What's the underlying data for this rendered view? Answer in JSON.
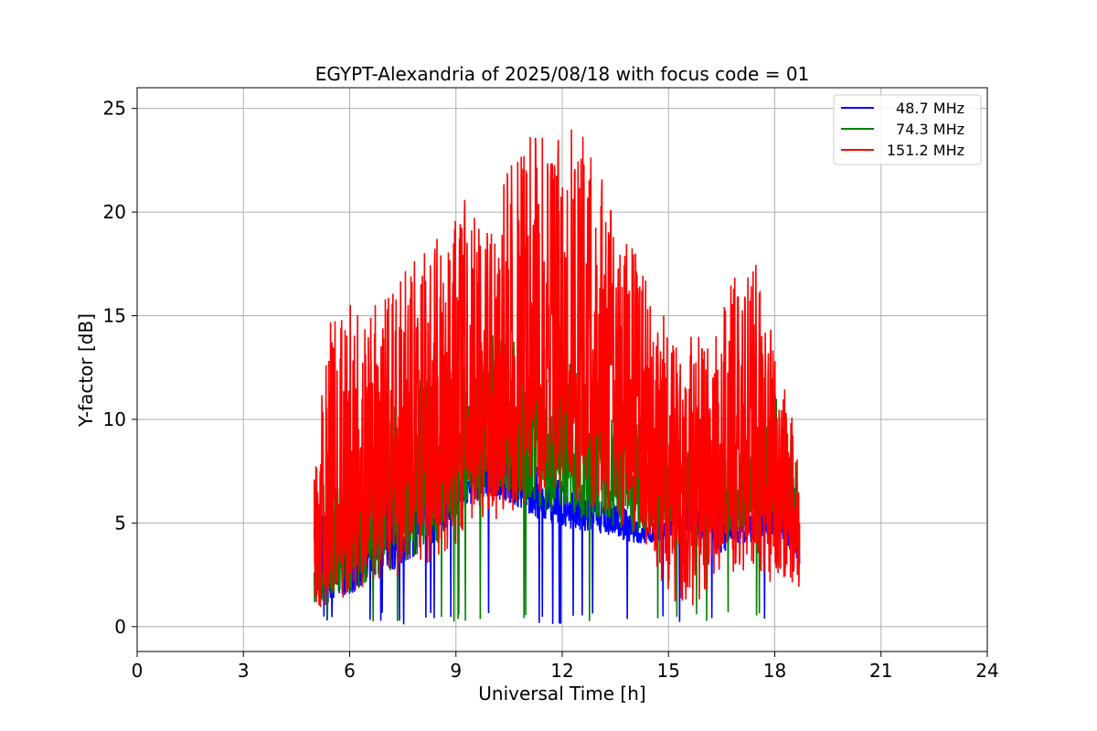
{
  "chart_data": {
    "type": "line",
    "title": "EGYPT-Alexandria of 2025/08/18 with focus code = 01",
    "xlabel": "Universal Time [h]",
    "ylabel": "Y-factor [dB]",
    "xlim": [
      0,
      24
    ],
    "ylim": [
      -1.2,
      26
    ],
    "xticks": [
      0,
      3,
      6,
      9,
      12,
      15,
      18,
      21,
      24
    ],
    "yticks": [
      0,
      5,
      10,
      15,
      20,
      25
    ],
    "grid": true,
    "legend_position": "top-right",
    "series": [
      {
        "name": "48.7 MHz",
        "color": "#0000ff",
        "x": [
          5.0,
          5.5,
          6.0,
          6.5,
          7.0,
          7.5,
          8.0,
          8.5,
          9.0,
          9.5,
          10.0,
          10.5,
          11.0,
          11.5,
          12.0,
          12.5,
          13.0,
          13.5,
          14.0,
          14.5,
          15.0,
          15.5,
          16.0,
          16.5,
          17.0,
          17.5,
          18.0,
          18.5,
          18.7
        ],
        "low": [
          1.0,
          1.2,
          1.5,
          2.0,
          2.5,
          3.0,
          3.5,
          4.0,
          5.5,
          6.0,
          6.2,
          6.0,
          5.5,
          5.0,
          4.8,
          4.6,
          4.5,
          4.2,
          4.0,
          4.0,
          4.2,
          4.5,
          4.0,
          3.5,
          3.8,
          4.2,
          4.5,
          3.5,
          3.0
        ],
        "high": [
          6.5,
          6.0,
          6.5,
          7.0,
          7.5,
          8.0,
          8.5,
          8.8,
          9.0,
          9.5,
          9.0,
          8.5,
          8.0,
          7.5,
          7.0,
          6.5,
          6.2,
          6.0,
          5.5,
          5.0,
          5.5,
          6.5,
          6.8,
          6.5,
          6.2,
          6.0,
          6.0,
          5.5,
          5.0
        ]
      },
      {
        "name": "74.3 MHz",
        "color": "#008000",
        "x": [
          5.0,
          5.5,
          6.0,
          6.5,
          7.0,
          7.5,
          8.0,
          8.5,
          9.0,
          9.5,
          10.0,
          10.5,
          11.0,
          11.5,
          12.0,
          12.5,
          13.0,
          13.5,
          14.0,
          14.5,
          15.0,
          15.5,
          16.0,
          16.5,
          17.0,
          17.5,
          18.0,
          18.5,
          18.7
        ],
        "low": [
          1.0,
          1.5,
          1.5,
          2.0,
          2.5,
          3.0,
          3.5,
          4.0,
          5.0,
          6.0,
          6.5,
          6.5,
          6.0,
          5.5,
          5.5,
          5.0,
          5.0,
          4.8,
          4.5,
          4.5,
          4.8,
          5.5,
          5.0,
          4.5,
          4.5,
          5.0,
          5.5,
          4.5,
          3.5
        ],
        "high": [
          7.8,
          7.5,
          8.0,
          9.0,
          10.0,
          11.5,
          12.5,
          12.2,
          12.5,
          13.0,
          14.5,
          14.0,
          13.5,
          13.5,
          13.0,
          12.5,
          12.0,
          11.5,
          10.5,
          9.5,
          8.5,
          8.8,
          8.5,
          8.5,
          9.0,
          10.0,
          11.2,
          9.0,
          7.0
        ]
      },
      {
        "name": "151.2 MHz",
        "color": "#ff0000",
        "x": [
          5.0,
          5.5,
          6.0,
          6.5,
          7.0,
          7.5,
          8.0,
          8.5,
          9.0,
          9.5,
          10.0,
          10.5,
          11.0,
          11.5,
          12.0,
          12.5,
          13.0,
          13.5,
          14.0,
          14.5,
          15.0,
          15.5,
          16.0,
          16.5,
          17.0,
          17.5,
          18.0,
          18.5,
          18.7
        ],
        "low": [
          0.8,
          1.0,
          1.5,
          1.8,
          2.2,
          2.5,
          2.8,
          3.2,
          4.0,
          4.5,
          5.0,
          5.5,
          6.0,
          6.5,
          6.5,
          6.0,
          5.5,
          5.0,
          4.5,
          3.5,
          1.5,
          0.5,
          1.5,
          2.0,
          2.5,
          2.5,
          2.0,
          1.5,
          1.0
        ],
        "high": [
          8.0,
          15.5,
          16.5,
          14.5,
          17.0,
          17.5,
          18.0,
          19.0,
          21.0,
          21.5,
          20.0,
          22.5,
          24.5,
          23.5,
          24.5,
          24.0,
          22.5,
          20.0,
          18.5,
          17.5,
          14.5,
          14.5,
          14.0,
          15.5,
          17.5,
          17.5,
          13.5,
          10.0,
          8.5
        ]
      }
    ]
  }
}
